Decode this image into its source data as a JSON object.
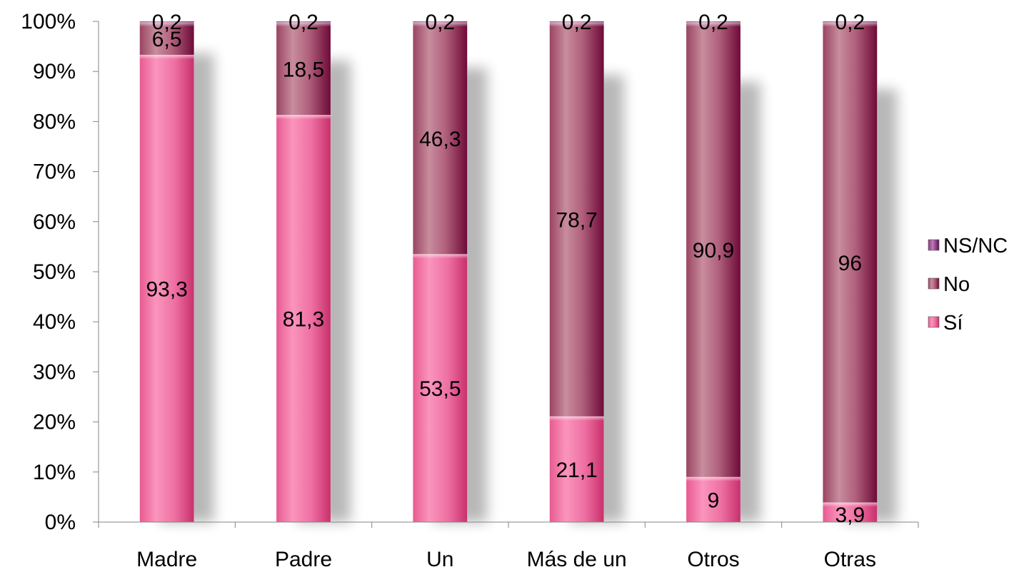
{
  "chart_data": {
    "type": "bar",
    "stacked": true,
    "percent": true,
    "categories": [
      "Madre",
      "Padre",
      "Un",
      "Más de un",
      "Otros",
      "Otras"
    ],
    "series": [
      {
        "name": "Sí",
        "values": [
          93.3,
          81.3,
          53.5,
          21.1,
          9,
          3.9
        ],
        "labels": [
          "93,3",
          "81,3",
          "53,5",
          "21,1",
          "9",
          "3,9"
        ],
        "color": "#f06a9e"
      },
      {
        "name": "No",
        "values": [
          6.5,
          18.5,
          46.3,
          78.7,
          90.9,
          96
        ],
        "labels": [
          "6,5",
          "18,5",
          "46,3",
          "78,7",
          "90,9",
          "96"
        ],
        "color": "#a9486a"
      },
      {
        "name": "NS/NC",
        "values": [
          0.2,
          0.2,
          0.2,
          0.2,
          0.2,
          0.2
        ],
        "labels": [
          "0,2",
          "0,2",
          "0,2",
          "0,2",
          "0,2",
          "0,2"
        ],
        "color": "#8c3f8f"
      }
    ],
    "y_ticks": [
      "0%",
      "10%",
      "20%",
      "30%",
      "40%",
      "50%",
      "60%",
      "70%",
      "80%",
      "90%",
      "100%"
    ],
    "ylim": [
      0,
      100
    ],
    "legend": {
      "position": "right",
      "order": [
        "NS/NC",
        "No",
        "Sí"
      ]
    },
    "grid": false,
    "title": "",
    "xlabel": "",
    "ylabel": ""
  }
}
